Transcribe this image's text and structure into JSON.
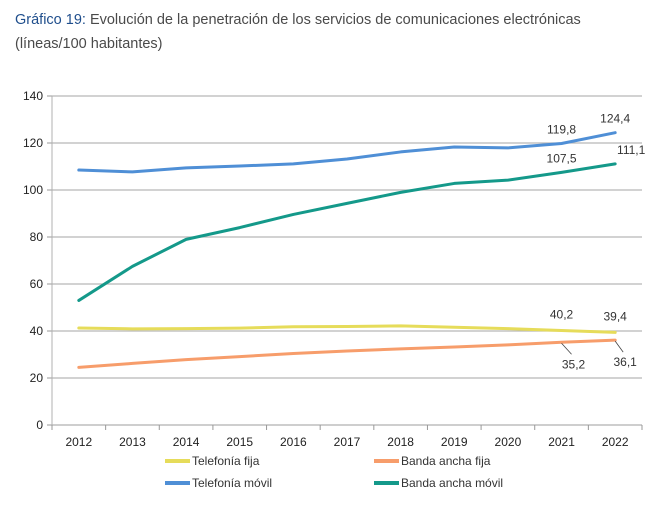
{
  "title": {
    "lead": "Gráfico 19:",
    "text": " Evolución de la penetración de los servicios de comunicaciones electrónicas (líneas/100 habitantes)"
  },
  "chart_data": {
    "type": "line",
    "title": "Gráfico 19: Evolución de la penetración de los servicios de comunicaciones electrónicas (líneas/100 habitantes)",
    "xlabel": "",
    "ylabel": "",
    "x": [
      "2012",
      "2013",
      "2014",
      "2015",
      "2016",
      "2017",
      "2018",
      "2019",
      "2020",
      "2021",
      "2022"
    ],
    "ylim": [
      0,
      140
    ],
    "yticks": [
      0,
      20,
      40,
      60,
      80,
      100,
      120,
      140
    ],
    "grid": true,
    "legend": "bottom",
    "series": [
      {
        "name": "Telefonía fija",
        "color": "#e6dc5a",
        "values": [
          41.3,
          40.9,
          41.0,
          41.2,
          41.8,
          41.9,
          42.2,
          41.6,
          41.0,
          40.2,
          39.4
        ]
      },
      {
        "name": "Banda ancha fija",
        "color": "#f79d6b",
        "values": [
          24.5,
          26.2,
          27.8,
          29.1,
          30.4,
          31.5,
          32.4,
          33.2,
          34.1,
          35.2,
          36.1
        ]
      },
      {
        "name": "Telefonía móvil",
        "color": "#4f8fd6",
        "values": [
          108.5,
          107.7,
          109.4,
          110.2,
          111.1,
          113.2,
          116.2,
          118.3,
          117.9,
          119.8,
          124.4
        ]
      },
      {
        "name": "Banda ancha móvil",
        "color": "#14998a",
        "values": [
          53.0,
          67.5,
          79.0,
          84.0,
          89.6,
          94.3,
          99.0,
          102.8,
          104.2,
          107.5,
          111.1
        ]
      }
    ],
    "annotations": [
      {
        "series": "Telefonía móvil",
        "x": "2021",
        "text": "119,8"
      },
      {
        "series": "Telefonía móvil",
        "x": "2022",
        "text": "124,4"
      },
      {
        "series": "Banda ancha móvil",
        "x": "2021",
        "text": "107,5"
      },
      {
        "series": "Banda ancha móvil",
        "x": "2022",
        "text": "111,1"
      },
      {
        "series": "Telefonía fija",
        "x": "2021",
        "text": "40,2"
      },
      {
        "series": "Telefonía fija",
        "x": "2022",
        "text": "39,4"
      },
      {
        "series": "Banda ancha fija",
        "x": "2021",
        "text": "35,2"
      },
      {
        "series": "Banda ancha fija",
        "x": "2022",
        "text": "36,1"
      }
    ]
  }
}
